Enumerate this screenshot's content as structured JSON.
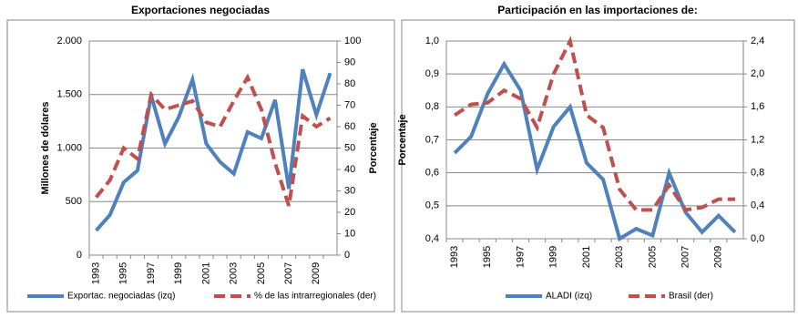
{
  "chart_data": [
    {
      "type": "line",
      "title": "Exportaciones negociadas",
      "ylabel": "Millones de dólares",
      "y2label": "Porcentaje",
      "categories": [
        "1993",
        null,
        "1995",
        null,
        "1997",
        null,
        "1999",
        null,
        "2001",
        null,
        "2003",
        null,
        "2005",
        null,
        "2007",
        null,
        "2009",
        null
      ],
      "series": [
        {
          "name": "Exportac. negociadas (izq)",
          "color": "#4f81bd",
          "line_style": "solid",
          "values": [
            230,
            375,
            680,
            790,
            1490,
            1040,
            1290,
            1640,
            1040,
            870,
            760,
            1150,
            1090,
            1450,
            620,
            1735,
            1310,
            1700
          ]
        },
        {
          "name": "% de las intrarregionales (der)",
          "color": "#c0504d",
          "line_style": "dashed",
          "axis": "y2",
          "values": [
            27,
            35,
            50,
            45,
            75,
            68,
            70,
            72,
            62,
            60,
            72,
            83,
            68,
            43,
            23,
            65,
            60,
            64
          ]
        }
      ],
      "ylim": [
        0,
        2000
      ],
      "yticks": [
        0,
        500,
        {
          "value": 1000,
          "label": "1.000"
        },
        {
          "value": 1500,
          "label": "1.500"
        },
        {
          "value": 2000,
          "label": "2.000"
        }
      ],
      "y2lim": [
        0,
        100
      ],
      "y2ticks": [
        0,
        10,
        20,
        30,
        40,
        50,
        60,
        70,
        80,
        90,
        100
      ],
      "grid": true
    },
    {
      "type": "line",
      "title": "Participación en las importaciones de:",
      "ylabel": "Porcentaje",
      "categories": [
        "1993",
        null,
        "1995",
        null,
        "1997",
        null,
        "1999",
        null,
        "2001",
        null,
        "2003",
        null,
        "2005",
        null,
        "2007",
        null,
        "2009",
        null
      ],
      "series": [
        {
          "name": "ALADI (izq)",
          "color": "#4f81bd",
          "line_style": "solid",
          "values": [
            0.66,
            0.71,
            0.84,
            0.93,
            0.85,
            0.61,
            0.74,
            0.8,
            0.63,
            0.58,
            0.4,
            0.43,
            0.41,
            0.6,
            0.48,
            0.42,
            0.47,
            0.42
          ]
        },
        {
          "name": "Brasil (der)",
          "color": "#c0504d",
          "line_style": "dashed",
          "axis": "y2",
          "values": [
            1.5,
            1.63,
            1.65,
            1.8,
            1.7,
            1.35,
            2.0,
            2.4,
            1.5,
            1.35,
            0.6,
            0.35,
            0.35,
            0.65,
            0.35,
            0.38,
            0.48,
            0.48
          ]
        }
      ],
      "ylim": [
        0.4,
        1.0
      ],
      "yticks": [
        {
          "value": 0.4,
          "label": "0,4"
        },
        {
          "value": 0.5,
          "label": "0,5"
        },
        {
          "value": 0.6,
          "label": "0,6"
        },
        {
          "value": 0.7,
          "label": "0,7"
        },
        {
          "value": 0.8,
          "label": "0,8"
        },
        {
          "value": 0.9,
          "label": "0,9"
        },
        {
          "value": 1.0,
          "label": "1,0"
        }
      ],
      "y2lim": [
        0,
        2.4
      ],
      "y2ticks": [
        {
          "value": 0,
          "label": "0,0"
        },
        {
          "value": 0.4,
          "label": "0,4"
        },
        {
          "value": 0.8,
          "label": "0,8"
        },
        {
          "value": 1.2,
          "label": "1,2"
        },
        {
          "value": 1.6,
          "label": "1,6"
        },
        {
          "value": 2.0,
          "label": "2,0"
        },
        {
          "value": 2.4,
          "label": "2,4"
        }
      ],
      "grid": true
    }
  ]
}
